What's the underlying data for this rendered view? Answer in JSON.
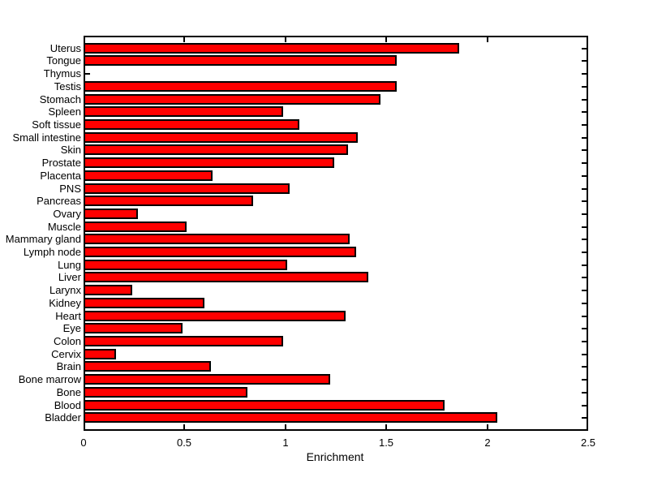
{
  "figure": {
    "background": "#FFFFFF",
    "text_color": "#000000"
  },
  "chart_data": {
    "type": "bar",
    "orientation": "horizontal",
    "title": "",
    "xlabel": "Enrichment",
    "ylabel": "",
    "xlim": [
      0,
      2.5
    ],
    "x_ticks": [
      0,
      0.5,
      1,
      1.5,
      2,
      2.5
    ],
    "x_tick_labels": [
      "0",
      "0.5",
      "1",
      "1.5",
      "2",
      "2.5"
    ],
    "grid": false,
    "legend": false,
    "bar_fill_color": "#FF0000",
    "bar_edge_color": "#000000",
    "axis_color": "#000000",
    "categories_top_to_bottom": [
      "Uterus",
      "Tongue",
      "Thymus",
      "Testis",
      "Stomach",
      "Spleen",
      "Soft tissue",
      "Small intestine",
      "Skin",
      "Prostate",
      "Placenta",
      "PNS",
      "Pancreas",
      "Ovary",
      "Muscle",
      "Mammary gland",
      "Lymph node",
      "Lung",
      "Liver",
      "Larynx",
      "Kidney",
      "Heart",
      "Eye",
      "Colon",
      "Cervix",
      "Brain",
      "Bone marrow",
      "Bone",
      "Blood",
      "Bladder"
    ],
    "values": [
      1.86,
      1.55,
      0,
      1.55,
      1.47,
      0.99,
      1.07,
      1.36,
      1.31,
      1.24,
      0.64,
      1.02,
      0.84,
      0.27,
      0.51,
      1.32,
      1.35,
      1.01,
      1.41,
      0.24,
      0.6,
      1.3,
      0.49,
      0.99,
      0.16,
      0.63,
      1.22,
      0.81,
      1.79,
      2.05
    ]
  }
}
